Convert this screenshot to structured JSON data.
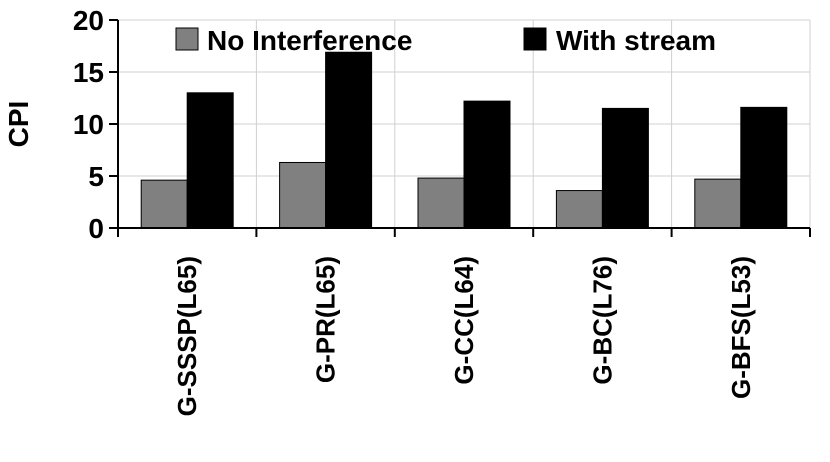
{
  "chart_data": {
    "type": "bar",
    "ylabel": "CPI",
    "ylim": [
      0,
      20
    ],
    "yticks": [
      0,
      5,
      10,
      15,
      20
    ],
    "grid": true,
    "legend_position": "top",
    "categories": [
      "G-SSSP(L65)",
      "G-PR(L65)",
      "G-CC(L64)",
      "G-BC(L76)",
      "G-BFS(L53)"
    ],
    "series": [
      {
        "name": "No Interference",
        "color": "#808080",
        "values": [
          4.6,
          6.3,
          4.8,
          3.6,
          4.7
        ]
      },
      {
        "name": "With stream",
        "color": "#000000",
        "values": [
          13.0,
          16.9,
          12.2,
          11.5,
          11.6
        ]
      }
    ]
  }
}
